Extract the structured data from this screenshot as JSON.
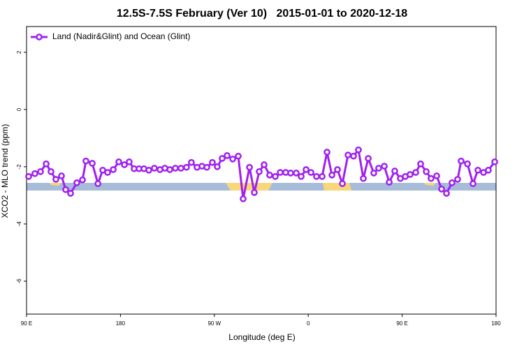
{
  "chart_data": {
    "type": "line",
    "title": "12.5S-7.5S February (Ver 10)   2015-01-01 to 2020-12-18",
    "x_label": "Longitude (deg E)",
    "y_label": "XCO2 - MLO trend (ppm)",
    "legend": "top-left",
    "xlim": [
      90,
      540
    ],
    "ylim": [
      -7.15,
      2.9
    ],
    "xticks": [
      {
        "value": 90,
        "label": "90 E"
      },
      180,
      {
        "value": 270,
        "label": "90 W"
      },
      {
        "value": 360,
        "label": "0"
      },
      {
        "value": 450,
        "label": "90 E"
      },
      {
        "value": 540,
        "label": "180"
      }
    ],
    "yticks": [
      2,
      0,
      -2,
      -4,
      -6
    ],
    "x": [
      92.0,
      98.0,
      103.4,
      108.8,
      113.4,
      118.1,
      123.5,
      127.5,
      132.2,
      138.2,
      143.6,
      146.9,
      153.0,
      158.4,
      163.0,
      167.7,
      173.1,
      178.4,
      183.8,
      188.4,
      193.1,
      197.8,
      202.5,
      207.2,
      212.5,
      217.9,
      222.6,
      227.3,
      232.6,
      238.0,
      243.3,
      248.0,
      253.4,
      258.1,
      262.8,
      268.1,
      272.8,
      277.5,
      282.2,
      287.6,
      292.9,
      297.6,
      303.7,
      308.3,
      313.0,
      317.7,
      323.0,
      328.4,
      333.1,
      338.4,
      343.1,
      348.5,
      353.2,
      357.9,
      362.6,
      367.9,
      373.3,
      378.0,
      382.7,
      388.0,
      392.7,
      398.1,
      403.4,
      408.1,
      412.8,
      417.5,
      422.8,
      427.5,
      432.9,
      437.6,
      442.9,
      448.3,
      453.0,
      457.6,
      463.0,
      467.7,
      473.1,
      477.7,
      483.1,
      487.8,
      492.5,
      497.8,
      503.2,
      506.5,
      512.6,
      517.9,
      522.6,
      528.0,
      532.6,
      538.7
    ],
    "series": [
      {
        "name": "Land (Nadir&Glint) and Ocean (Glint)",
        "color": "#a020f0",
        "values": [
          -2.34,
          -2.24,
          -2.17,
          -1.9,
          -2.17,
          -2.44,
          -2.32,
          -2.8,
          -2.93,
          -2.56,
          -2.46,
          -1.8,
          -1.88,
          -2.59,
          -2.12,
          -2.2,
          -2.1,
          -1.83,
          -1.93,
          -1.83,
          -2.07,
          -2.07,
          -2.07,
          -2.12,
          -2.05,
          -2.1,
          -2.05,
          -2.1,
          -2.05,
          -2.05,
          -2.02,
          -1.85,
          -2.02,
          -1.98,
          -2.02,
          -1.85,
          -2.0,
          -1.71,
          -1.61,
          -1.73,
          -1.63,
          -3.12,
          -2.02,
          -2.9,
          -2.17,
          -1.93,
          -2.29,
          -2.34,
          -2.2,
          -2.2,
          -2.22,
          -2.22,
          -2.34,
          -2.1,
          -2.2,
          -2.34,
          -2.34,
          -1.49,
          -2.29,
          -2.1,
          -2.59,
          -1.59,
          -1.63,
          -1.41,
          -2.41,
          -1.71,
          -2.22,
          -2.05,
          -1.98,
          -2.54,
          -2.15,
          -2.41,
          -2.34,
          -2.27,
          -2.2,
          -1.9,
          -2.17,
          -2.41,
          -2.32,
          -2.78,
          -2.93,
          -2.56,
          -2.44,
          -1.8,
          -1.9,
          -2.59,
          -2.12,
          -2.2,
          -2.12,
          -1.83
        ]
      }
    ]
  }
}
